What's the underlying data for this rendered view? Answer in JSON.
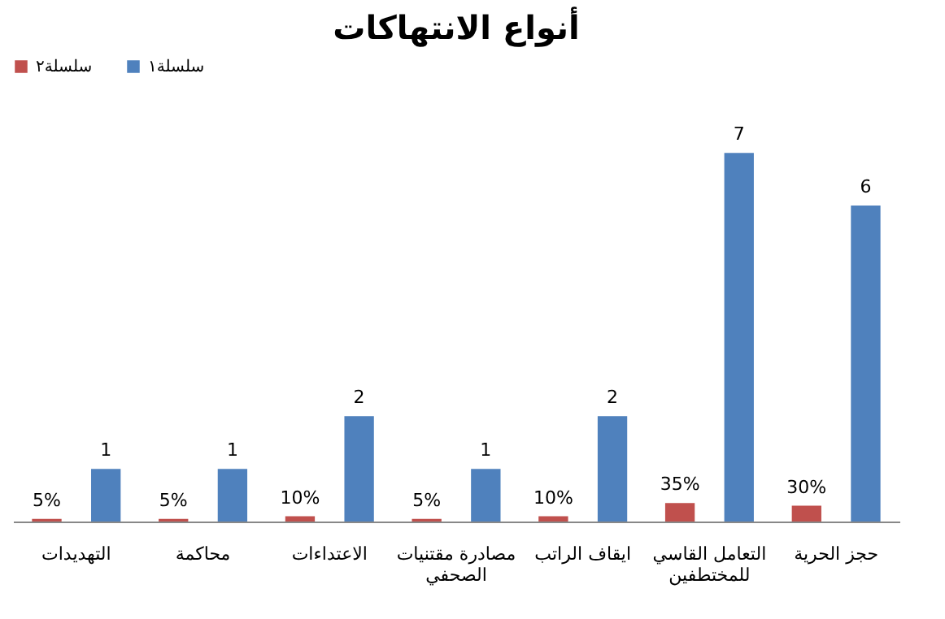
{
  "chart_data": {
    "type": "bar",
    "title": "أنواع الانتهاكات",
    "categories": [
      "التهديدات",
      "محاكمة",
      "الاعتداءات",
      "مصادرة مقتنيات الصحفي",
      "ايقاف الراتب",
      "التعامل القاسي للمختطفين",
      "حجز الحرية"
    ],
    "series": [
      {
        "name": "سلسلة٢",
        "color": "#c0504d",
        "values": [
          0.05,
          0.05,
          0.1,
          0.05,
          0.1,
          0.35,
          0.3
        ],
        "value_labels": [
          "5%",
          "5%",
          "10%",
          "5%",
          "10%",
          "35%",
          "30%"
        ]
      },
      {
        "name": "سلسلة١",
        "color": "#4f81bd",
        "values": [
          1,
          1,
          2,
          1,
          2,
          7,
          6
        ],
        "value_labels": [
          "1",
          "1",
          "2",
          "1",
          "2",
          "7",
          "6"
        ]
      }
    ],
    "legend": "top",
    "grid": false
  }
}
